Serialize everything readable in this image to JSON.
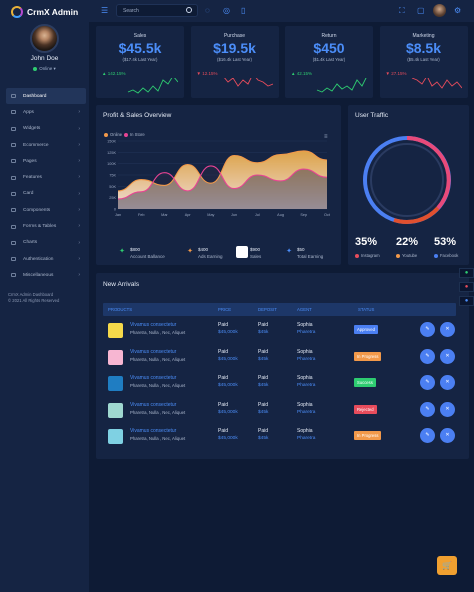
{
  "app": {
    "title": "CrmX Admin"
  },
  "user": {
    "name": "John Doe",
    "status": "Online"
  },
  "search": {
    "placeholder": "Search"
  },
  "nav": [
    {
      "label": "Dashboard",
      "active": true,
      "chevron": false
    },
    {
      "label": "Apps",
      "chevron": true
    },
    {
      "label": "Widgets",
      "chevron": true
    },
    {
      "label": "Ecommerce",
      "chevron": true
    },
    {
      "label": "Pages",
      "chevron": true
    },
    {
      "label": "Features",
      "chevron": true
    },
    {
      "label": "Card",
      "chevron": true
    },
    {
      "label": "Components",
      "chevron": true
    },
    {
      "label": "Forms & Tables",
      "chevron": true
    },
    {
      "label": "Charts",
      "chevron": true
    },
    {
      "label": "Authentication",
      "chevron": true
    },
    {
      "label": "Miscellaneous",
      "chevron": true
    }
  ],
  "footer": {
    "line1": "CrmX Admin Dashboard",
    "line2": "© 2021 All Rights Reserved"
  },
  "stats": [
    {
      "label": "Sales",
      "value": "$45.5k",
      "sub": "($17.4k Last Year)",
      "change": "142.15%",
      "dir": "up",
      "color": "#2ecc71"
    },
    {
      "label": "Purchase",
      "value": "$19.5k",
      "sub": "($16.4k Last Year)",
      "change": "12.15%",
      "dir": "down",
      "color": "#e74c5c"
    },
    {
      "label": "Return",
      "value": "$450",
      "sub": "($1.4k Last Year)",
      "change": "42.15%",
      "dir": "up",
      "color": "#2ecc71"
    },
    {
      "label": "Marketing",
      "value": "$8.5k",
      "sub": "($5.4k Last Year)",
      "change": "27.15%",
      "dir": "down",
      "color": "#e74c5c"
    }
  ],
  "profit": {
    "title": "Profit & Sales Overview",
    "legend": [
      {
        "label": "Online",
        "color": "#f2994a"
      },
      {
        "label": "In Store",
        "color": "#e84393"
      }
    ],
    "summary": [
      {
        "value": "$800",
        "label": "Account Ballance"
      },
      {
        "value": "$400",
        "label": "Ads Earning"
      },
      {
        "value": "$900",
        "label": "Sales"
      },
      {
        "value": "$50",
        "label": "Total Earning"
      }
    ]
  },
  "chart_data": {
    "type": "area",
    "x": [
      "Jan",
      "Feb",
      "Mar",
      "Apr",
      "May",
      "Jun",
      "Jul",
      "Aug",
      "Sep",
      "Oct"
    ],
    "ylim": [
      0,
      150000
    ],
    "yticks": [
      "0",
      "25K",
      "50K",
      "75K",
      "100K",
      "125K",
      "150K"
    ],
    "grid": true,
    "legend": "top-left",
    "series": [
      {
        "name": "Online",
        "color": "#f2994a",
        "values": [
          40000,
          65000,
          52000,
          98000,
          57000,
          118000,
          102000,
          120000,
          128000,
          108000
        ]
      },
      {
        "name": "In Store",
        "color": "#e84393",
        "values": [
          22000,
          38000,
          80000,
          40000,
          95000,
          45000,
          75000,
          62000,
          88000,
          70000
        ]
      }
    ]
  },
  "traffic": {
    "title": "User Traffic",
    "items": [
      {
        "pct": "35%",
        "label": "Instagram",
        "color": "#e74c5c",
        "value": 35
      },
      {
        "pct": "22%",
        "label": "Youtube",
        "color": "#f2994a",
        "value": 22
      },
      {
        "pct": "53%",
        "label": "Facebook",
        "color": "#4b7ff2",
        "value": 53
      }
    ]
  },
  "arrivals": {
    "title": "New Arrivals",
    "headers": [
      "PRODUCTS",
      "PRICE",
      "DEPOSIT",
      "AGENT",
      "STATUS"
    ],
    "rows": [
      {
        "name": "Vivamus consectetur",
        "desc": "Pharetra, Nulla , Nec, Aliquet",
        "price_label": "Paid",
        "price": "$45,000k",
        "deposit_label": "Paid",
        "deposit": "$45k",
        "agent": "Sophia",
        "agent2": "Pharetra",
        "status": "Approved",
        "status_color": "#4b7ff2",
        "thumb": "#f5d94a"
      },
      {
        "name": "Vivamus consectetur",
        "desc": "Pharetra, Nulla , Nec, Aliquet",
        "price_label": "Paid",
        "price": "$45,000k",
        "deposit_label": "Paid",
        "deposit": "$45k",
        "agent": "Sophia",
        "agent2": "Pharetra",
        "status": "In Progress",
        "status_color": "#f2994a",
        "thumb": "#f7b6d2"
      },
      {
        "name": "Vivamus consectetur",
        "desc": "Pharetra, Nulla , Nec, Aliquet",
        "price_label": "Paid",
        "price": "$45,000k",
        "deposit_label": "Paid",
        "deposit": "$45k",
        "agent": "Sophia",
        "agent2": "Pharetra",
        "status": "Success",
        "status_color": "#2ecc71",
        "thumb": "#1f7dc2"
      },
      {
        "name": "Vivamus consectetur",
        "desc": "Pharetra, Nulla , Nec, Aliquet",
        "price_label": "Paid",
        "price": "$45,000k",
        "deposit_label": "Paid",
        "deposit": "$45k",
        "agent": "Sophia",
        "agent2": "Pharetra",
        "status": "Rejected",
        "status_color": "#e74c5c",
        "thumb": "#9fd8d0"
      },
      {
        "name": "Vivamus consectetur",
        "desc": "Pharetra, Nulla , Nec, Aliquet",
        "price_label": "Paid",
        "price": "$45,000k",
        "deposit_label": "Paid",
        "deposit": "$45k",
        "agent": "Sophia",
        "agent2": "Pharetra",
        "status": "In Progress",
        "status_color": "#f2994a",
        "thumb": "#7fd1e3"
      }
    ]
  }
}
